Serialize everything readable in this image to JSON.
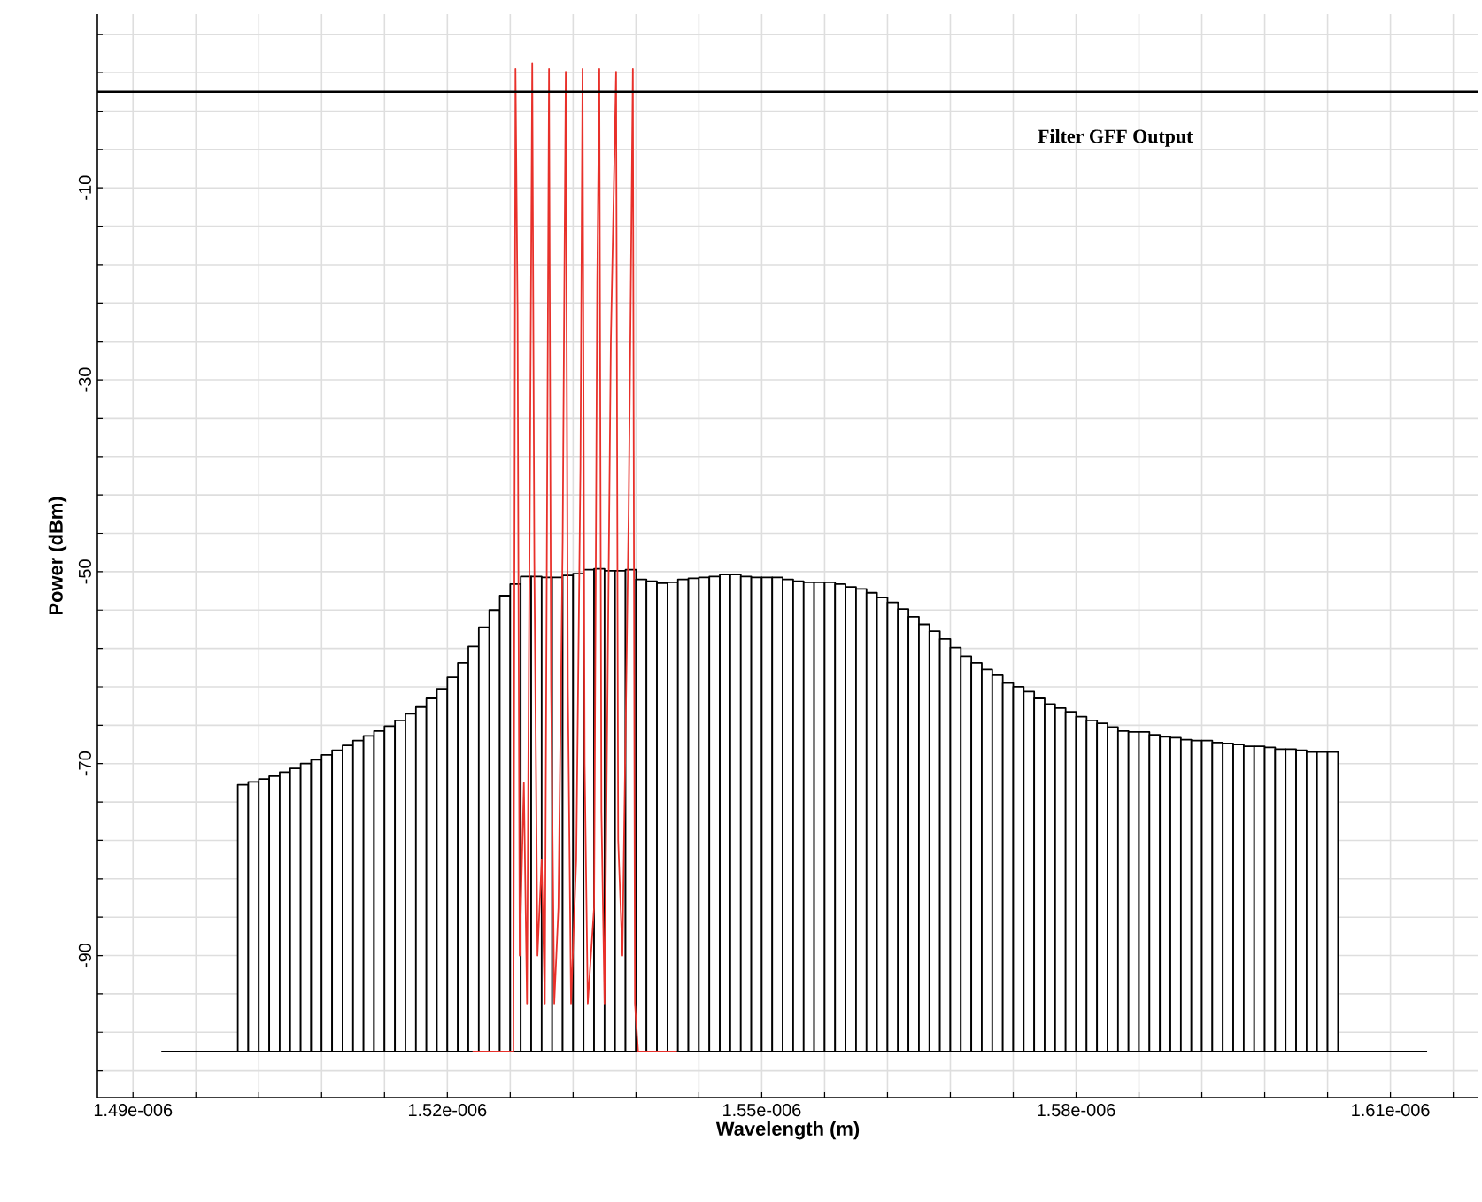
{
  "chart_data": {
    "type": "bar",
    "title": "Filter GFF Output",
    "xlabel": "Wavelength (m)",
    "ylabel": "Power (dBm)",
    "xlim": [
      1.4866e-06,
      1.6184e-06
    ],
    "ylim": [
      -104.8,
      8.1
    ],
    "xticks": [
      {
        "value": 1.49e-06,
        "label": "1.49e-006"
      },
      {
        "value": 1.496e-06,
        "label": null
      },
      {
        "value": 1.502e-06,
        "label": null
      },
      {
        "value": 1.508e-06,
        "label": null
      },
      {
        "value": 1.514e-06,
        "label": null
      },
      {
        "value": 1.52e-06,
        "label": "1.52e-006"
      },
      {
        "value": 1.526e-06,
        "label": null
      },
      {
        "value": 1.532e-06,
        "label": null
      },
      {
        "value": 1.538e-06,
        "label": null
      },
      {
        "value": 1.544e-06,
        "label": null
      },
      {
        "value": 1.55e-06,
        "label": "1.55e-006"
      },
      {
        "value": 1.556e-06,
        "label": null
      },
      {
        "value": 1.562e-06,
        "label": null
      },
      {
        "value": 1.568e-06,
        "label": null
      },
      {
        "value": 1.574e-06,
        "label": null
      },
      {
        "value": 1.58e-06,
        "label": "1.58e-006"
      },
      {
        "value": 1.586e-06,
        "label": null
      },
      {
        "value": 1.592e-06,
        "label": null
      },
      {
        "value": 1.598e-06,
        "label": null
      },
      {
        "value": 1.604e-06,
        "label": null
      },
      {
        "value": 1.61e-06,
        "label": "1.61e-006"
      },
      {
        "value": 1.616e-06,
        "label": null
      }
    ],
    "yticks": [
      {
        "value": -102,
        "label": null
      },
      {
        "value": -98,
        "label": null
      },
      {
        "value": -94,
        "label": null
      },
      -90,
      {
        "value": -86,
        "label": null
      },
      {
        "value": -82,
        "label": null
      },
      {
        "value": -78,
        "label": null
      },
      {
        "value": -74,
        "label": null
      },
      -70,
      {
        "value": -66,
        "label": null
      },
      {
        "value": -62,
        "label": null
      },
      {
        "value": -58,
        "label": null
      },
      {
        "value": -54,
        "label": null
      },
      -50,
      {
        "value": -46,
        "label": null
      },
      {
        "value": -42,
        "label": null
      },
      {
        "value": -38,
        "label": null
      },
      {
        "value": -34,
        "label": null
      },
      -30,
      {
        "value": -26,
        "label": null
      },
      {
        "value": -22,
        "label": null
      },
      {
        "value": -18,
        "label": null
      },
      {
        "value": -14,
        "label": null
      },
      -10,
      {
        "value": -6,
        "label": null
      },
      {
        "value": -2,
        "label": null
      },
      {
        "value": 2,
        "label": null
      },
      {
        "value": 6,
        "label": null
      }
    ],
    "grid": true,
    "ref_lines": [
      {
        "axis": "y",
        "value": 0,
        "color": "#000000"
      }
    ],
    "series": [
      {
        "color": "#000000",
        "x": [
          1.5005e-06,
          1.5015e-06,
          1.5025e-06,
          1.5035e-06,
          1.5045e-06,
          1.5055e-06,
          1.5065e-06,
          1.5075e-06,
          1.5085e-06,
          1.5095e-06,
          1.5105e-06,
          1.5115e-06,
          1.5125e-06,
          1.5135e-06,
          1.5145e-06,
          1.5155e-06,
          1.5165e-06,
          1.5175e-06,
          1.5185e-06,
          1.5195e-06,
          1.5205e-06,
          1.5215e-06,
          1.5225e-06,
          1.5235e-06,
          1.5245e-06,
          1.5255e-06,
          1.5265e-06,
          1.5275e-06,
          1.5285e-06,
          1.5295e-06,
          1.5305e-06,
          1.5315e-06,
          1.5325e-06,
          1.5335e-06,
          1.5345e-06,
          1.5355e-06,
          1.5365e-06,
          1.5375e-06,
          1.5385e-06,
          1.5395e-06,
          1.5405e-06,
          1.5415e-06,
          1.5425e-06,
          1.5435e-06,
          1.5445e-06,
          1.5455e-06,
          1.5465e-06,
          1.5475e-06,
          1.5485e-06,
          1.5495e-06,
          1.5505e-06,
          1.5515e-06,
          1.5525e-06,
          1.5535e-06,
          1.5545e-06,
          1.5555e-06,
          1.5565e-06,
          1.5575e-06,
          1.5585e-06,
          1.5595e-06,
          1.5605e-06,
          1.5615e-06,
          1.5625e-06,
          1.5635e-06,
          1.5645e-06,
          1.5655e-06,
          1.5665e-06,
          1.5675e-06,
          1.5685e-06,
          1.5695e-06,
          1.5705e-06,
          1.5715e-06,
          1.5725e-06,
          1.5735e-06,
          1.5745e-06,
          1.5755e-06,
          1.5765e-06,
          1.5775e-06,
          1.5785e-06,
          1.5795e-06,
          1.5805e-06,
          1.5815e-06,
          1.5825e-06,
          1.5835e-06,
          1.5845e-06,
          1.5855e-06,
          1.5865e-06,
          1.5875e-06,
          1.5885e-06,
          1.5895e-06,
          1.5905e-06,
          1.5915e-06,
          1.5925e-06,
          1.5935e-06,
          1.5945e-06,
          1.5955e-06,
          1.5965e-06,
          1.5975e-06,
          1.5985e-06,
          1.5995e-06,
          1.6005e-06,
          1.6015e-06,
          1.6025e-06,
          1.6035e-06,
          1.6045e-06
        ],
        "base": [
          -100,
          -100,
          -100,
          -100,
          -100,
          -100,
          -100,
          -100,
          -100,
          -100,
          -100,
          -100,
          -100,
          -100,
          -100,
          -100,
          -100,
          -100,
          -100,
          -100,
          -100,
          -100,
          -100,
          -100,
          -100,
          -100,
          -100,
          -100,
          -100,
          -100,
          -100,
          -100,
          -100,
          -100,
          -100,
          -100,
          -100,
          -100,
          -100,
          -100,
          -100,
          -100,
          -100,
          -100,
          -100,
          -100,
          -100,
          -100,
          -100,
          -100,
          -100,
          -100,
          -100,
          -100,
          -100,
          -100,
          -100,
          -100,
          -100,
          -100,
          -100,
          -100,
          -100,
          -100,
          -100,
          -100,
          -100,
          -100,
          -100,
          -100,
          -100,
          -100,
          -100,
          -100,
          -100,
          -100,
          -100,
          -100,
          -100,
          -100,
          -100,
          -100,
          -100,
          -100,
          -100,
          -100,
          -100,
          -100,
          -100,
          -100,
          -100,
          -100,
          -100,
          -100,
          -100,
          -100,
          -100,
          -100,
          -100,
          -100,
          -100,
          -100,
          -100,
          -100,
          -100
        ],
        "values": [
          27.8,
          28.1,
          28.4,
          28.7,
          29.1,
          29.5,
          30.0,
          30.4,
          30.9,
          31.4,
          31.9,
          32.4,
          32.9,
          33.4,
          33.9,
          34.5,
          35.2,
          35.9,
          36.8,
          37.8,
          39.0,
          40.5,
          42.2,
          44.2,
          46.0,
          47.5,
          48.7,
          49.5,
          49.5,
          49.4,
          49.4,
          49.6,
          49.8,
          50.2,
          50.3,
          50.1,
          50.1,
          50.2,
          49.2,
          49.0,
          48.8,
          48.9,
          49.2,
          49.3,
          49.4,
          49.5,
          49.7,
          49.7,
          49.5,
          49.4,
          49.4,
          49.4,
          49.2,
          49.0,
          48.9,
          48.9,
          48.9,
          48.7,
          48.4,
          48.2,
          47.8,
          47.3,
          46.8,
          46.1,
          45.3,
          44.5,
          43.8,
          43.0,
          42.1,
          41.2,
          40.5,
          39.8,
          39.2,
          38.4,
          38.0,
          37.5,
          36.8,
          36.2,
          35.8,
          35.4,
          34.9,
          34.5,
          34.2,
          33.8,
          33.4,
          33.3,
          33.3,
          33.0,
          32.8,
          32.7,
          32.5,
          32.4,
          32.4,
          32.2,
          32.1,
          32.0,
          31.8,
          31.8,
          31.7,
          31.5,
          31.5,
          31.4,
          31.2,
          31.2,
          31.2
        ]
      },
      {
        "type": "line",
        "color": "#000000",
        "x": [
          1.4927e-06,
          1.5e-06,
          1.55e-06,
          1.605e-06,
          1.6135e-06
        ],
        "values": [
          -100,
          -100,
          null,
          -100,
          -100
        ]
      },
      {
        "type": "line",
        "color": "#e8302a",
        "x": [
          1.5224e-06,
          1.5263e-06,
          1.5265e-06,
          1.5267e-06,
          1.5269e-06,
          1.5273e-06,
          1.5276e-06,
          1.5281e-06,
          1.5283e-06,
          1.5286e-06,
          1.529e-06,
          1.5293e-06,
          1.5297e-06,
          1.5299e-06,
          1.5302e-06,
          1.5306e-06,
          1.531e-06,
          1.5313e-06,
          1.5315e-06,
          1.5318e-06,
          1.5323e-06,
          1.5327e-06,
          1.5329e-06,
          1.5331e-06,
          1.5334e-06,
          1.534e-06,
          1.5343e-06,
          1.5345e-06,
          1.5347e-06,
          1.535e-06,
          1.5356e-06,
          1.5361e-06,
          1.5363e-06,
          1.5367e-06,
          1.5373e-06,
          1.5377e-06,
          1.5379e-06,
          1.5382e-06,
          1.5419e-06
        ],
        "values": [
          -100,
          -100,
          2.4,
          -22.9,
          -90,
          -72,
          -95,
          3.0,
          -49,
          -90,
          -80,
          -95,
          2.4,
          -62,
          -95,
          -85,
          -47,
          2.1,
          -62,
          -95,
          -80,
          -39,
          2.4,
          -70,
          -95,
          -85,
          -20,
          2.4,
          -75,
          -95,
          -26,
          2.1,
          -78,
          -90,
          -44,
          2.4,
          -95,
          -100,
          -100
        ]
      }
    ]
  }
}
